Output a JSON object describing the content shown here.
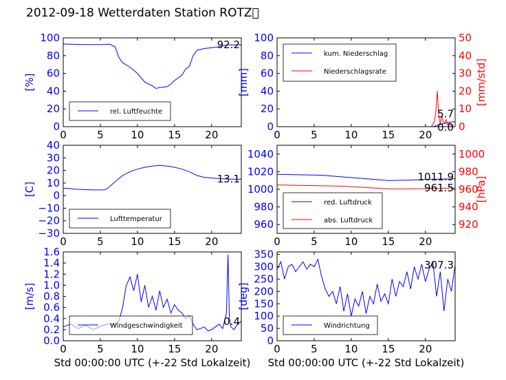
{
  "title": "2012-09-18 Wetterdaten Station ROTZ\u0000",
  "colors": {
    "blue": "#0000ff",
    "red": "#ff0000",
    "light_blue": "#8080ff",
    "black": "#000000"
  },
  "chart_data": [
    {
      "type": "line",
      "ylabel": "[%]",
      "xlim": [
        0,
        24
      ],
      "ylim": [
        0,
        100
      ],
      "xticks": [
        "0",
        "5",
        "10",
        "15",
        "20"
      ],
      "yticks": [
        "0",
        "20",
        "40",
        "60",
        "80",
        "100"
      ],
      "legend": [
        "rel. Luftfeuchte"
      ],
      "legend_position": "lower-left",
      "last_value_label": "92.2",
      "series": [
        {
          "name": "rel. Luftfeuchte",
          "x": [
            0,
            3,
            5.5,
            6.2,
            7,
            7.5,
            8,
            9,
            10,
            10.5,
            11,
            12,
            12.5,
            13,
            14,
            14.5,
            15,
            16,
            16.5,
            17,
            17.5,
            18,
            19,
            20,
            21,
            22,
            23,
            24
          ],
          "y": [
            93,
            92.5,
            92.5,
            93,
            90,
            78,
            72,
            67,
            60,
            55,
            50,
            46,
            43,
            44,
            45,
            48,
            52,
            58,
            65,
            68,
            80,
            86,
            88,
            89,
            90,
            92,
            92,
            92.2
          ]
        }
      ]
    },
    {
      "type": "line",
      "ylabel": "[mm]",
      "ylabel_right": "[mm/std]",
      "xlim": [
        0,
        24
      ],
      "ylim": [
        0,
        100
      ],
      "ylim_right": [
        0,
        50
      ],
      "xticks": [
        "0",
        "5",
        "10",
        "15",
        "20"
      ],
      "yticks": [
        "0",
        "20",
        "40",
        "60",
        "80",
        "100"
      ],
      "yticks_right": [
        "0",
        "10",
        "20",
        "30",
        "40",
        "50"
      ],
      "legend": [
        "kum. Niederschlag",
        "Niederschlagsrate"
      ],
      "legend_position": "upper-left",
      "last_value_labels": [
        "5.7",
        "0.0"
      ],
      "series": [
        {
          "name": "kum. Niederschlag",
          "axis": "left",
          "x": [
            0,
            21,
            21.6,
            22.2,
            22.8,
            23.4,
            24
          ],
          "y": [
            0,
            0,
            1.5,
            3,
            4.2,
            5.2,
            5.7
          ]
        },
        {
          "name": "Niederschlagsrate",
          "axis": "right",
          "x": [
            0,
            20.8,
            21.2,
            21.4,
            21.6,
            21.8,
            22.0,
            22.2,
            22.4,
            22.6,
            22.8,
            23.0,
            23.2,
            23.4,
            23.6,
            24
          ],
          "y": [
            0,
            0,
            3,
            8,
            20,
            5,
            2,
            6,
            3,
            2,
            4,
            1,
            2,
            1,
            0,
            0
          ]
        }
      ]
    },
    {
      "type": "line",
      "ylabel": "[C]",
      "xlim": [
        0,
        24
      ],
      "ylim": [
        -30,
        40
      ],
      "xticks": [
        "0",
        "5",
        "10",
        "15",
        "20"
      ],
      "yticks": [
        "−30",
        "−20",
        "−10",
        "0",
        "10",
        "20",
        "30",
        "40"
      ],
      "legend": [
        "Lufttemperatur"
      ],
      "legend_position": "lower-left",
      "last_value_label": "13.1",
      "series": [
        {
          "name": "Lufttemperatur",
          "x": [
            0,
            2,
            4,
            5.5,
            6,
            7,
            8,
            9,
            10,
            11,
            12,
            13,
            14,
            15,
            16,
            17,
            18,
            19,
            20,
            21,
            22,
            23,
            24
          ],
          "y": [
            6,
            5,
            4.5,
            4.5,
            6,
            11,
            16,
            19,
            21,
            22.5,
            23.5,
            24,
            23.5,
            22.5,
            21,
            19,
            16,
            14.5,
            14,
            13.5,
            13.2,
            13.1,
            13.1
          ]
        }
      ]
    },
    {
      "type": "line",
      "ylabel_right": "[hPa]",
      "xlim": [
        0,
        24
      ],
      "ylim": [
        950,
        1050
      ],
      "ylim_right": [
        910,
        1010
      ],
      "xticks": [
        "0",
        "5",
        "10",
        "15",
        "20"
      ],
      "yticks": [
        "960",
        "980",
        "1000",
        "1020",
        "1040"
      ],
      "yticks_right": [
        "920",
        "940",
        "960",
        "980",
        "1000"
      ],
      "legend": [
        "red. Luftdruck",
        "abs. Luftdruck"
      ],
      "legend_position": "lower-left",
      "last_value_labels": [
        "1011.9",
        "961.5"
      ],
      "series": [
        {
          "name": "red. Luftdruck",
          "axis": "left",
          "x": [
            0,
            3,
            6,
            9,
            12,
            15,
            18,
            21,
            24
          ],
          "y": [
            1017,
            1016.5,
            1016,
            1014,
            1012,
            1010,
            1010.5,
            1011.5,
            1011.9
          ]
        },
        {
          "name": "abs. Luftdruck",
          "axis": "right",
          "x": [
            0,
            3,
            6,
            9,
            12,
            15,
            18,
            21,
            24
          ],
          "y": [
            965,
            964.5,
            964,
            963.5,
            962,
            960.5,
            960.5,
            961,
            961.5
          ]
        }
      ]
    },
    {
      "type": "line",
      "ylabel": "[m/s]",
      "xlabel": "Std 00:00:00 UTC (+-22 Std Lokalzeit)",
      "xlim": [
        0,
        24
      ],
      "ylim": [
        0,
        1.6
      ],
      "xticks": [
        "0",
        "5",
        "10",
        "15",
        "20"
      ],
      "yticks": [
        "0.0",
        "0.2",
        "0.4",
        "0.6",
        "0.8",
        "1.0",
        "1.2",
        "1.4",
        "1.6"
      ],
      "legend": [
        "Windgeschwindigkeit"
      ],
      "legend_position": "lower-left",
      "last_value_label": "0.4",
      "series": [
        {
          "name": "Windgeschwindigkeit",
          "x": [
            0,
            1,
            2,
            3,
            4,
            5,
            6,
            7,
            7.5,
            8,
            8.5,
            9,
            9.5,
            10,
            10.5,
            11,
            11.5,
            12,
            12.5,
            13,
            13.5,
            14,
            14.5,
            15,
            15.5,
            16,
            16.5,
            17,
            17.5,
            18,
            18.5,
            19,
            19.5,
            20,
            20.5,
            21,
            21.5,
            22,
            22.2,
            22.4,
            22.6,
            23,
            23.5,
            24
          ],
          "y": [
            0.25,
            0.3,
            0.22,
            0.28,
            0.2,
            0.26,
            0.3,
            0.28,
            0.35,
            0.6,
            1.0,
            1.15,
            0.9,
            1.2,
            0.7,
            1.0,
            0.6,
            0.8,
            0.55,
            0.9,
            0.6,
            0.75,
            0.5,
            0.65,
            0.55,
            0.5,
            0.4,
            0.45,
            0.3,
            0.2,
            0.22,
            0.25,
            0.18,
            0.2,
            0.25,
            0.3,
            0.22,
            0.5,
            1.55,
            0.4,
            0.25,
            0.2,
            0.3,
            0.35
          ]
        }
      ]
    },
    {
      "type": "line",
      "ylabel": "[deg]",
      "xlabel": "Std 00:00:00 UTC (+-22 Std Lokalzeit)",
      "xlim": [
        0,
        24
      ],
      "ylim": [
        0,
        360
      ],
      "xticks": [
        "0",
        "5",
        "10",
        "15",
        "20"
      ],
      "yticks": [
        "0",
        "50",
        "100",
        "150",
        "200",
        "250",
        "300",
        "350"
      ],
      "legend": [
        "Windrichtung"
      ],
      "legend_position": "lower-left",
      "last_value_label": "307.3",
      "series": [
        {
          "name": "Windrichtung",
          "x": [
            0,
            0.5,
            1,
            1.5,
            2,
            2.5,
            3,
            3.5,
            4,
            4.5,
            5,
            5.5,
            6,
            6.5,
            7,
            7.5,
            8,
            8.5,
            9,
            9.5,
            10,
            10.5,
            11,
            11.5,
            12,
            12.5,
            13,
            13.5,
            14,
            14.5,
            15,
            15.5,
            16,
            16.5,
            17,
            17.5,
            18,
            18.5,
            19,
            19.5,
            20,
            20.5,
            21,
            21.5,
            22,
            22.5,
            23,
            23.5,
            24
          ],
          "y": [
            290,
            320,
            250,
            300,
            310,
            280,
            300,
            320,
            290,
            310,
            300,
            330,
            260,
            210,
            180,
            200,
            150,
            220,
            120,
            190,
            100,
            170,
            140,
            200,
            110,
            180,
            150,
            230,
            160,
            190,
            150,
            250,
            180,
            240,
            220,
            280,
            210,
            300,
            250,
            310,
            240,
            290,
            320,
            180,
            280,
            120,
            250,
            200,
            307.3
          ]
        }
      ]
    }
  ]
}
